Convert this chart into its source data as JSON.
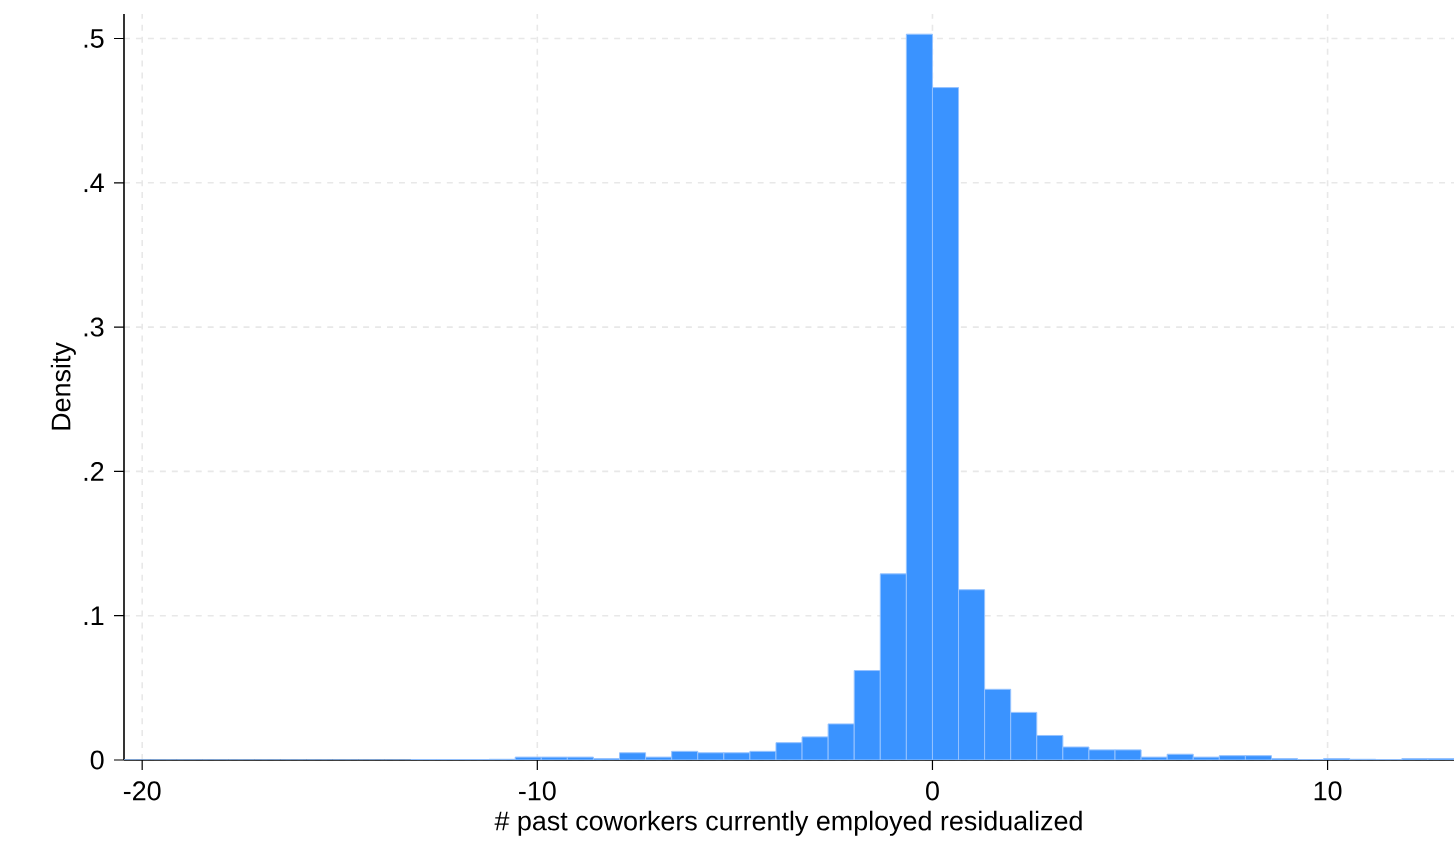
{
  "chart_data": {
    "type": "histogram",
    "xlabel": "# past coworkers currently employed residualized",
    "ylabel": "Density",
    "bins": [
      -20.46,
      -19.8,
      -19.14,
      -18.48,
      -17.82,
      -17.16,
      -16.5,
      -15.84,
      -15.18,
      -14.52,
      -13.86,
      -13.2,
      -12.54,
      -11.88,
      -11.22,
      -10.56,
      -9.9,
      -9.24,
      -8.58,
      -7.92,
      -7.26,
      -6.6,
      -5.94,
      -5.28,
      -4.62,
      -3.96,
      -3.3,
      -2.64,
      -1.98,
      -1.32,
      -0.66,
      0,
      0.66,
      1.32,
      1.98,
      2.64,
      3.3,
      3.96,
      4.62,
      5.28,
      5.94,
      6.6,
      7.26,
      7.92,
      8.58,
      9.24,
      9.9,
      10.56,
      11.22,
      11.88,
      12.54,
      13.2
    ],
    "values": [
      0,
      0,
      0,
      0,
      0,
      0,
      0,
      0,
      0,
      0,
      0,
      0.0003,
      0.0003,
      0.0003,
      0.0005,
      0.002,
      0.002,
      0.002,
      0.001,
      0.005,
      0.002,
      0.006,
      0.005,
      0.005,
      0.006,
      0.012,
      0.016,
      0.025,
      0.062,
      0.129,
      0.503,
      0.466,
      0.118,
      0.049,
      0.033,
      0.017,
      0.009,
      0.007,
      0.007,
      0.002,
      0.004,
      0.002,
      0.003,
      0.003,
      0.001,
      0.0003,
      0.001,
      0.0005,
      0.0003,
      0.001,
      0.001
    ],
    "color": "#3a93ff",
    "xlim": [
      -20.46,
      13.2
    ],
    "ylim": [
      0,
      0.517
    ],
    "xticks": [
      -20,
      -10,
      0,
      10
    ],
    "yticks": [
      0,
      {
        "value": 0.1,
        "label": ".1"
      },
      {
        "value": 0.2,
        "label": ".2"
      },
      {
        "value": 0.3,
        "label": ".3"
      },
      {
        "value": 0.4,
        "label": ".4"
      },
      {
        "value": 0.5,
        "label": ".5"
      }
    ],
    "grid": true
  }
}
